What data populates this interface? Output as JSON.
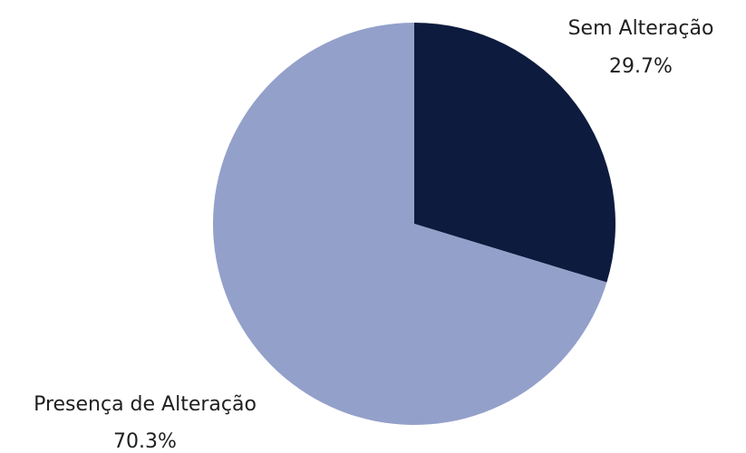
{
  "chart_data": {
    "type": "pie",
    "title": "",
    "start_angle_deg": 0,
    "direction": "clockwise",
    "slices": [
      {
        "label": "Sem Alteração",
        "value": 29.7,
        "value_label": "29.7%",
        "color": "#0d1b3e"
      },
      {
        "label": "Presença de Alteração",
        "value": 70.3,
        "value_label": "70.3%",
        "color": "#93a0ca"
      }
    ],
    "legend": "none",
    "labels_outside": true
  }
}
